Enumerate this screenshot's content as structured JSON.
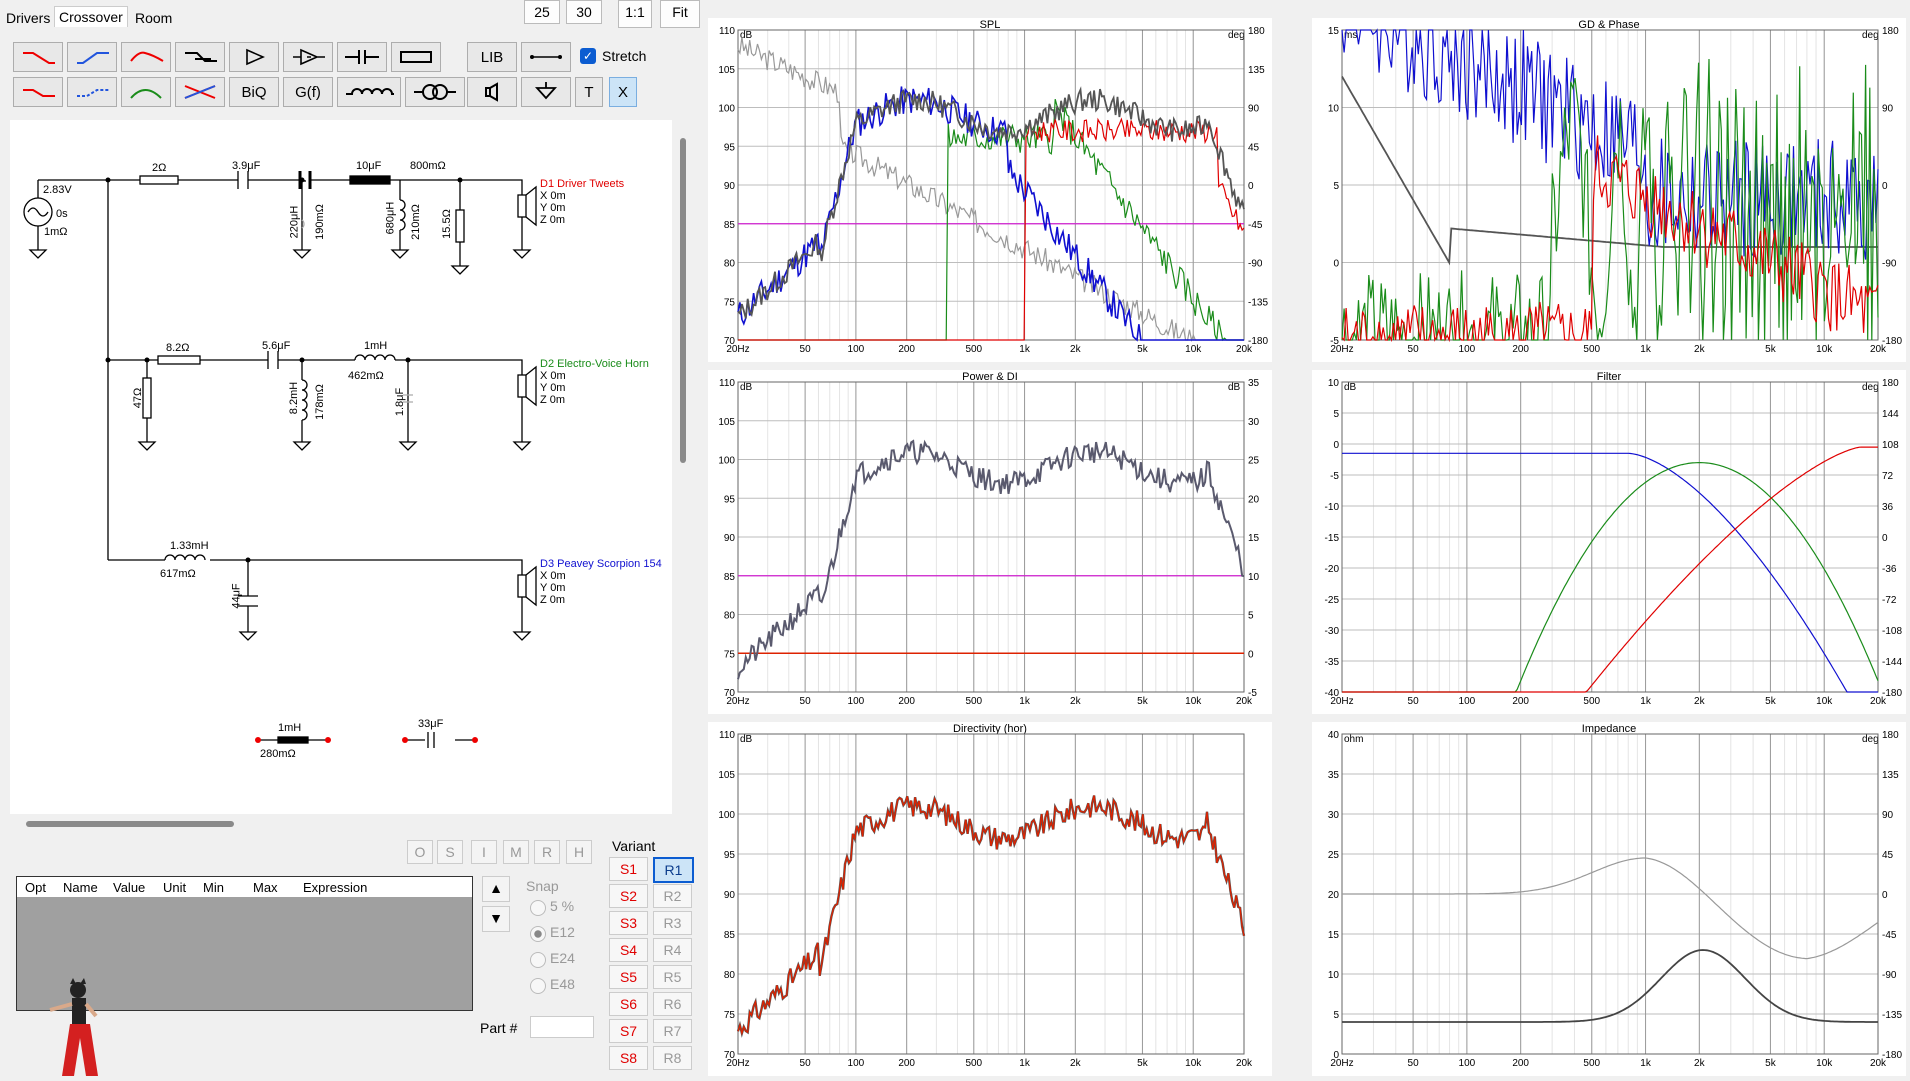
{
  "tabs": [
    "Drivers",
    "Crossover",
    "Room"
  ],
  "topbar": {
    "zoom_a": "25",
    "zoom_b": "30",
    "ratio": "1:1",
    "fit": "Fit"
  },
  "toolbar": {
    "stretch_label": "Stretch",
    "stretch_checked": true,
    "biq": "BiQ",
    "gf": "G(f)",
    "lib": "LIB",
    "t": "T",
    "x": "X"
  },
  "schematic": {
    "source": {
      "voltage": "2.83V",
      "delay": "0s",
      "resistance": "1mΩ"
    },
    "branch1": {
      "r_series": "2Ω",
      "cap1": "3.9μF",
      "cap2": "10μF",
      "r2": "800mΩ",
      "l_shunt": "220μH",
      "l_shunt_r": "190mΩ",
      "l2": "680μH",
      "l2_r": "210mΩ",
      "r_shunt": "15.5Ω",
      "driver": "D1 Driver Tweets"
    },
    "branch2": {
      "r_series": "8.2Ω",
      "cap": "5.6μF",
      "ind": "1mH",
      "ind_r": "462mΩ",
      "r_shunt": "47Ω",
      "l_shunt": "8.2mH",
      "l_shunt_r": "178mΩ",
      "c_shunt": "1.8μF",
      "driver": "D2 Electro-Voice Horn"
    },
    "branch3": {
      "ind": "1.33mH",
      "ind_r": "617mΩ",
      "cap": "44μF",
      "driver": "D3 Peavey Scorpion 154"
    },
    "driver_pos": {
      "x": "X 0m",
      "y": "Y 0m",
      "z": "Z 0m"
    },
    "spare": {
      "ind": "1mH",
      "ind_r": "280mΩ",
      "cap": "33μF"
    }
  },
  "minibtns": [
    "O",
    "S",
    "I",
    "M",
    "R",
    "H"
  ],
  "table": {
    "headers": [
      "Opt",
      "Name",
      "Value",
      "Unit",
      "Min",
      "Max",
      "Expression"
    ]
  },
  "snap": {
    "title": "Snap",
    "options": [
      "5 %",
      "E12",
      "E24",
      "E48"
    ],
    "selected": "E12"
  },
  "partnum_label": "Part #",
  "variant": {
    "title": "Variant",
    "s": [
      "S1",
      "S2",
      "S3",
      "S4",
      "S5",
      "S6",
      "S7",
      "S8"
    ],
    "r": [
      "R1",
      "R2",
      "R3",
      "R4",
      "R5",
      "R6",
      "R7",
      "R8"
    ],
    "selected": "R1"
  },
  "graphs": {
    "spl": {
      "title": "SPL",
      "ylabel_left": "dB",
      "ylabel_right": "deg",
      "left_ticks": [
        "110",
        "105",
        "100",
        "95",
        "90",
        "85",
        "80",
        "75",
        "70"
      ],
      "right_ticks": [
        "180",
        "135",
        "90",
        "45",
        "0",
        "-45",
        "-90",
        "-135",
        "-180"
      ]
    },
    "gd": {
      "title": "GD & Phase",
      "ylabel_left": "ms",
      "ylabel_right": "deg",
      "left_ticks": [
        "15",
        "10",
        "5",
        "0",
        "-5"
      ],
      "right_ticks": [
        "180",
        "90",
        "0",
        "-90",
        "-180"
      ]
    },
    "power": {
      "title": "Power & DI",
      "ylabel_left": "dB",
      "ylabel_right": "dB",
      "left_ticks": [
        "110",
        "105",
        "100",
        "95",
        "90",
        "85",
        "80",
        "75",
        "70"
      ],
      "right_ticks": [
        "35",
        "30",
        "25",
        "20",
        "15",
        "10",
        "5",
        "0",
        "-5"
      ]
    },
    "filter": {
      "title": "Filter",
      "ylabel_left": "dB",
      "ylabel_right": "deg",
      "left_ticks": [
        "10",
        "5",
        "0",
        "-5",
        "-10",
        "-15",
        "-20",
        "-25",
        "-30",
        "-35",
        "-40"
      ],
      "right_ticks": [
        "180",
        "144",
        "108",
        "72",
        "36",
        "0",
        "-36",
        "-72",
        "-108",
        "-144",
        "-180"
      ]
    },
    "directivity": {
      "title": "Directivity (hor)",
      "ylabel_left": "dB",
      "left_ticks": [
        "110",
        "105",
        "100",
        "95",
        "90",
        "85",
        "80",
        "75",
        "70"
      ]
    },
    "impedance": {
      "title": "Impedance",
      "ylabel_left": "ohm",
      "ylabel_right": "deg",
      "left_ticks": [
        "40",
        "35",
        "30",
        "25",
        "20",
        "15",
        "10",
        "5",
        "0"
      ],
      "right_ticks": [
        "180",
        "135",
        "90",
        "45",
        "0",
        "-45",
        "-90",
        "-135",
        "-180"
      ]
    },
    "xticks": [
      "20Hz",
      "50",
      "100",
      "200",
      "500",
      "1k",
      "2k",
      "5k",
      "10k",
      "20k"
    ]
  },
  "colors": {
    "accent": "#0b5cd1",
    "driver1": "#e00000",
    "driver2": "#1a8c1a",
    "driver3": "#1010d0",
    "magenta": "#d020d0",
    "red": "#dd2200"
  }
}
